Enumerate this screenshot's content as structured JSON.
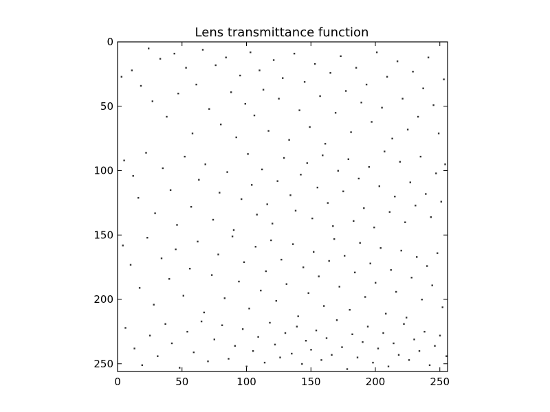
{
  "chart_data": {
    "type": "heatmap",
    "title": "Lens transmittance function",
    "xlabel": "",
    "ylabel": "",
    "image_size": [
      256,
      256
    ],
    "xlim": [
      0,
      256
    ],
    "ylim": [
      256,
      0
    ],
    "y_axis_inverted": true,
    "x_ticks": [
      0,
      50,
      100,
      150,
      200,
      250
    ],
    "y_ticks": [
      0,
      50,
      100,
      150,
      200,
      250
    ],
    "grid": false,
    "colormap": "gray",
    "background_value": 1.0,
    "pixel_value": 0.0,
    "description_values": {
      "white_level": 1,
      "dark_level": 0
    },
    "series": [
      {
        "values": [
          [
            3,
            27
          ],
          [
            11,
            22
          ],
          [
            18,
            34
          ],
          [
            24,
            5
          ],
          [
            27,
            46
          ],
          [
            33,
            13
          ],
          [
            38,
            58
          ],
          [
            44,
            9
          ],
          [
            47,
            40
          ],
          [
            53,
            20
          ],
          [
            58,
            71
          ],
          [
            61,
            33
          ],
          [
            66,
            6
          ],
          [
            71,
            52
          ],
          [
            76,
            18
          ],
          [
            80,
            64
          ],
          [
            84,
            12
          ],
          [
            88,
            39
          ],
          [
            92,
            74
          ],
          [
            95,
            26
          ],
          [
            99,
            48
          ],
          [
            103,
            8
          ],
          [
            106,
            57
          ],
          [
            110,
            22
          ],
          [
            113,
            37
          ],
          [
            117,
            69
          ],
          [
            121,
            14
          ],
          [
            125,
            44
          ],
          [
            128,
            28
          ],
          [
            133,
            76
          ],
          [
            137,
            9
          ],
          [
            141,
            53
          ],
          [
            145,
            31
          ],
          [
            149,
            66
          ],
          [
            153,
            17
          ],
          [
            157,
            42
          ],
          [
            161,
            79
          ],
          [
            165,
            24
          ],
          [
            169,
            55
          ],
          [
            173,
            11
          ],
          [
            177,
            38
          ],
          [
            181,
            70
          ],
          [
            185,
            20
          ],
          [
            189,
            47
          ],
          [
            193,
            33
          ],
          [
            197,
            62
          ],
          [
            201,
            8
          ],
          [
            205,
            51
          ],
          [
            209,
            27
          ],
          [
            213,
            75
          ],
          [
            217,
            15
          ],
          [
            221,
            44
          ],
          [
            225,
            68
          ],
          [
            229,
            23
          ],
          [
            233,
            58
          ],
          [
            237,
            36
          ],
          [
            241,
            12
          ],
          [
            245,
            49
          ],
          [
            249,
            71
          ],
          [
            253,
            29
          ],
          [
            5,
            92
          ],
          [
            12,
            104
          ],
          [
            16,
            121
          ],
          [
            22,
            86
          ],
          [
            29,
            133
          ],
          [
            35,
            98
          ],
          [
            41,
            115
          ],
          [
            46,
            142
          ],
          [
            52,
            89
          ],
          [
            57,
            128
          ],
          [
            63,
            107
          ],
          [
            68,
            95
          ],
          [
            74,
            138
          ],
          [
            79,
            117
          ],
          [
            85,
            101
          ],
          [
            90,
            146
          ],
          [
            96,
            122
          ],
          [
            101,
            87
          ],
          [
            104,
            111
          ],
          [
            108,
            134
          ],
          [
            112,
            99
          ],
          [
            116,
            126
          ],
          [
            120,
            141
          ],
          [
            124,
            108
          ],
          [
            129,
            90
          ],
          [
            134,
            119
          ],
          [
            138,
            131
          ],
          [
            142,
            103
          ],
          [
            147,
            94
          ],
          [
            151,
            137
          ],
          [
            155,
            113
          ],
          [
            159,
            88
          ],
          [
            163,
            125
          ],
          [
            167,
            143
          ],
          [
            171,
            100
          ],
          [
            175,
            116
          ],
          [
            179,
            91
          ],
          [
            183,
            139
          ],
          [
            187,
            106
          ],
          [
            191,
            129
          ],
          [
            195,
            97
          ],
          [
            199,
            144
          ],
          [
            203,
            112
          ],
          [
            207,
            85
          ],
          [
            211,
            132
          ],
          [
            215,
            120
          ],
          [
            219,
            93
          ],
          [
            223,
            140
          ],
          [
            227,
            109
          ],
          [
            231,
            127
          ],
          [
            235,
            89
          ],
          [
            239,
            118
          ],
          [
            243,
            136
          ],
          [
            247,
            102
          ],
          [
            251,
            124
          ],
          [
            254,
            95
          ],
          [
            4,
            158
          ],
          [
            10,
            173
          ],
          [
            17,
            191
          ],
          [
            23,
            152
          ],
          [
            28,
            204
          ],
          [
            34,
            168
          ],
          [
            40,
            184
          ],
          [
            45,
            161
          ],
          [
            51,
            197
          ],
          [
            56,
            176
          ],
          [
            62,
            155
          ],
          [
            67,
            210
          ],
          [
            73,
            181
          ],
          [
            78,
            165
          ],
          [
            83,
            199
          ],
          [
            89,
            151
          ],
          [
            94,
            186
          ],
          [
            98,
            171
          ],
          [
            102,
            207
          ],
          [
            107,
            159
          ],
          [
            111,
            193
          ],
          [
            115,
            178
          ],
          [
            119,
            154
          ],
          [
            123,
            201
          ],
          [
            127,
            169
          ],
          [
            131,
            188
          ],
          [
            136,
            157
          ],
          [
            140,
            213
          ],
          [
            144,
            175
          ],
          [
            148,
            195
          ],
          [
            152,
            163
          ],
          [
            156,
            182
          ],
          [
            160,
            205
          ],
          [
            164,
            170
          ],
          [
            168,
            153
          ],
          [
            172,
            190
          ],
          [
            176,
            166
          ],
          [
            180,
            208
          ],
          [
            184,
            179
          ],
          [
            188,
            156
          ],
          [
            192,
            198
          ],
          [
            196,
            172
          ],
          [
            200,
            187
          ],
          [
            204,
            160
          ],
          [
            208,
            211
          ],
          [
            212,
            177
          ],
          [
            216,
            194
          ],
          [
            220,
            162
          ],
          [
            224,
            214
          ],
          [
            228,
            183
          ],
          [
            232,
            167
          ],
          [
            236,
            200
          ],
          [
            240,
            174
          ],
          [
            244,
            189
          ],
          [
            248,
            164
          ],
          [
            252,
            206
          ],
          [
            6,
            222
          ],
          [
            13,
            238
          ],
          [
            19,
            251
          ],
          [
            25,
            228
          ],
          [
            31,
            244
          ],
          [
            37,
            219
          ],
          [
            42,
            234
          ],
          [
            48,
            253
          ],
          [
            54,
            225
          ],
          [
            59,
            241
          ],
          [
            65,
            217
          ],
          [
            70,
            248
          ],
          [
            75,
            231
          ],
          [
            81,
            220
          ],
          [
            86,
            246
          ],
          [
            91,
            236
          ],
          [
            97,
            223
          ],
          [
            100,
            252
          ],
          [
            105,
            240
          ],
          [
            109,
            229
          ],
          [
            114,
            249
          ],
          [
            118,
            218
          ],
          [
            122,
            235
          ],
          [
            126,
            245
          ],
          [
            130,
            226
          ],
          [
            135,
            242
          ],
          [
            139,
            221
          ],
          [
            143,
            250
          ],
          [
            146,
            232
          ],
          [
            150,
            239
          ],
          [
            154,
            224
          ],
          [
            158,
            247
          ],
          [
            162,
            230
          ],
          [
            166,
            243
          ],
          [
            170,
            216
          ],
          [
            174,
            237
          ],
          [
            178,
            254
          ],
          [
            182,
            227
          ],
          [
            186,
            245
          ],
          [
            190,
            233
          ],
          [
            194,
            221
          ],
          [
            198,
            249
          ],
          [
            202,
            238
          ],
          [
            206,
            226
          ],
          [
            210,
            252
          ],
          [
            214,
            234
          ],
          [
            218,
            243
          ],
          [
            222,
            219
          ],
          [
            226,
            247
          ],
          [
            230,
            231
          ],
          [
            234,
            240
          ],
          [
            238,
            225
          ],
          [
            242,
            251
          ],
          [
            246,
            236
          ],
          [
            250,
            228
          ],
          [
            255,
            244
          ]
        ]
      }
    ]
  }
}
